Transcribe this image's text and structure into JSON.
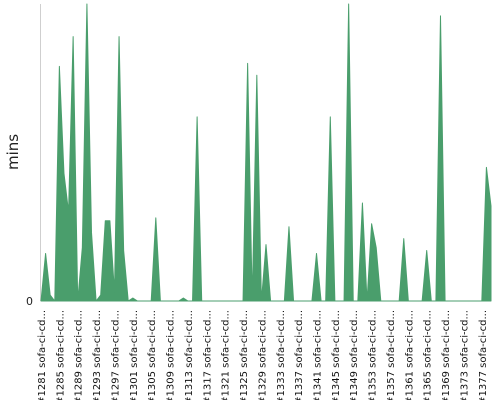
{
  "chart_data": {
    "type": "area",
    "title": "",
    "xlabel": "",
    "ylabel": "mins",
    "ylim": [
      0,
      100
    ],
    "y_ticks": [
      {
        "value": 0,
        "label": "0"
      }
    ],
    "color": "#4a9e6c",
    "grid": false,
    "legend": "none",
    "x_ticks": [
      "#1281 sofa-ci-cd...",
      "#1285 sofa-ci-cd...",
      "#1289 sofa-ci-cd...",
      "#1293 sofa-ci-cd...",
      "#1297 sofa-ci-cd...",
      "#1301 sofa-ci-cd...",
      "#1305 sofa-ci-cd...",
      "#1309 sofa-ci-cd...",
      "#1313 sofa-ci-cd...",
      "#1317 sofa-ci-cd...",
      "#1321 sofa-ci-cd...",
      "#1325 sofa-ci-cd...",
      "#1329 sofa-ci-cd...",
      "#1333 sofa-ci-cd...",
      "#1337 sofa-ci-cd...",
      "#1341 sofa-ci-cd...",
      "#1345 sofa-ci-cd...",
      "#1349 sofa-ci-cd...",
      "#1353 sofa-ci-cd...",
      "#1357 sofa-ci-cd...",
      "#1361 sofa-ci-cd...",
      "#1365 sofa-ci-cd...",
      "#1369 sofa-ci-cd...",
      "#1373 sofa-ci-cd...",
      "#1377 sofa-ci-cd..."
    ],
    "x": [
      1281,
      1282,
      1283,
      1284,
      1285,
      1286,
      1287,
      1288,
      1289,
      1290,
      1291,
      1292,
      1293,
      1294,
      1295,
      1296,
      1297,
      1298,
      1299,
      1300,
      1301,
      1302,
      1303,
      1304,
      1305,
      1306,
      1307,
      1308,
      1309,
      1310,
      1311,
      1312,
      1313,
      1314,
      1315,
      1316,
      1317,
      1318,
      1319,
      1320,
      1321,
      1322,
      1323,
      1324,
      1325,
      1326,
      1327,
      1328,
      1329,
      1330,
      1331,
      1332,
      1333,
      1334,
      1335,
      1336,
      1337,
      1338,
      1339,
      1340,
      1341,
      1342,
      1343,
      1344,
      1345,
      1346,
      1347,
      1348,
      1349,
      1350,
      1351,
      1352,
      1353,
      1354,
      1355,
      1356,
      1357,
      1358,
      1359,
      1360,
      1361,
      1362,
      1363,
      1364,
      1365,
      1366,
      1367,
      1368,
      1369,
      1370,
      1371,
      1372,
      1373,
      1374,
      1375,
      1376,
      1377,
      1378,
      1379
    ],
    "values": [
      0,
      16,
      2,
      0,
      79,
      43,
      30,
      89,
      0,
      18,
      100,
      23,
      0,
      2,
      27,
      27,
      3,
      89,
      17,
      0,
      1,
      0,
      0,
      0,
      0,
      28,
      0,
      0,
      0,
      0,
      0,
      1,
      0,
      0,
      62,
      0,
      0,
      0,
      0,
      0,
      0,
      0,
      0,
      0,
      0,
      80,
      0,
      76,
      0,
      19,
      0,
      0,
      0,
      0,
      25,
      0,
      0,
      0,
      0,
      0,
      16,
      0,
      0,
      62,
      0,
      0,
      0,
      100,
      0,
      0,
      33,
      0,
      26,
      18,
      0,
      0,
      0,
      0,
      0,
      21,
      0,
      0,
      0,
      0,
      17,
      0,
      0,
      96,
      0,
      0,
      0,
      0,
      0,
      0,
      0,
      0,
      0,
      45,
      32
    ]
  }
}
